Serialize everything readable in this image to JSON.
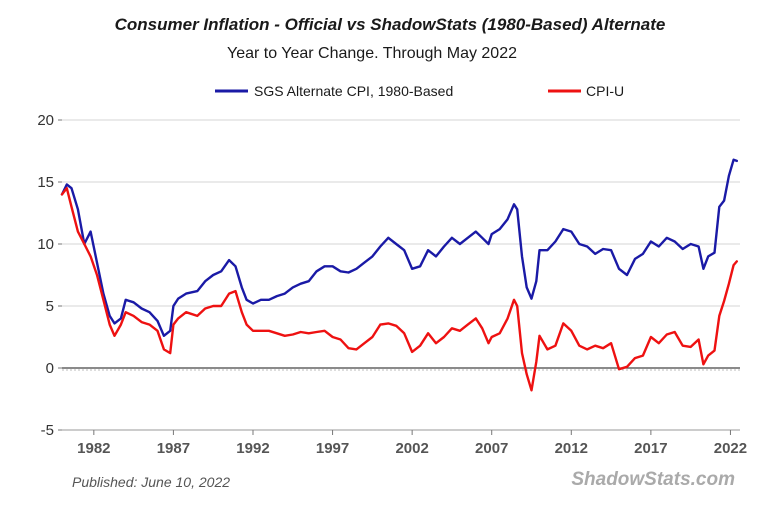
{
  "chart_data": {
    "type": "line",
    "title": "Consumer Inflation - Official vs ShadowStats (1980-Based) Alternate",
    "subtitle": "Year to Year Change. Through May 2022",
    "xlabel": "",
    "ylabel": "",
    "ylim": [
      -5,
      20
    ],
    "xlim": [
      1980,
      2022.6
    ],
    "yticks": [
      "-5",
      "0",
      "5",
      "10",
      "15",
      "20"
    ],
    "xticks": [
      "1982",
      "1987",
      "1992",
      "1997",
      "2002",
      "2007",
      "2012",
      "2017",
      "2022"
    ],
    "grid": true,
    "legend_position": "top-right",
    "series": [
      {
        "name": "SGS Alternate CPI, 1980-Based",
        "color": "#1a1aa6",
        "x": [
          1980.0,
          1980.3,
          1980.6,
          1981.0,
          1981.4,
          1981.8,
          1982.2,
          1982.6,
          1983.0,
          1983.3,
          1983.7,
          1984.0,
          1984.5,
          1985.0,
          1985.5,
          1986.0,
          1986.4,
          1986.8,
          1987.0,
          1987.3,
          1987.8,
          1988.5,
          1989.0,
          1989.5,
          1990.0,
          1990.5,
          1990.9,
          1991.3,
          1991.6,
          1992.0,
          1992.5,
          1993.0,
          1993.5,
          1994.0,
          1994.5,
          1995.0,
          1995.5,
          1996.0,
          1996.5,
          1997.0,
          1997.5,
          1998.0,
          1998.5,
          1999.0,
          1999.5,
          2000.0,
          2000.5,
          2001.0,
          2001.5,
          2002.0,
          2002.5,
          2003.0,
          2003.5,
          2004.0,
          2004.5,
          2005.0,
          2005.5,
          2006.0,
          2006.4,
          2006.8,
          2007.0,
          2007.5,
          2008.0,
          2008.4,
          2008.6,
          2008.9,
          2009.2,
          2009.5,
          2009.8,
          2010.0,
          2010.5,
          2011.0,
          2011.5,
          2012.0,
          2012.5,
          2013.0,
          2013.5,
          2014.0,
          2014.5,
          2015.0,
          2015.5,
          2016.0,
          2016.5,
          2017.0,
          2017.5,
          2018.0,
          2018.5,
          2019.0,
          2019.5,
          2020.0,
          2020.3,
          2020.6,
          2021.0,
          2021.3,
          2021.6,
          2021.9,
          2022.2,
          2022.4
        ],
        "values": [
          14.0,
          14.8,
          14.5,
          12.8,
          10.0,
          11.0,
          8.5,
          6.0,
          4.2,
          3.6,
          4.0,
          5.5,
          5.3,
          4.8,
          4.5,
          3.8,
          2.6,
          3.0,
          5.0,
          5.6,
          6.0,
          6.2,
          7.0,
          7.5,
          7.8,
          8.7,
          8.2,
          6.5,
          5.5,
          5.2,
          5.5,
          5.5,
          5.8,
          6.0,
          6.5,
          6.8,
          7.0,
          7.8,
          8.2,
          8.2,
          7.8,
          7.7,
          8.0,
          8.5,
          9.0,
          9.8,
          10.5,
          10.0,
          9.5,
          8.0,
          8.2,
          9.5,
          9.0,
          9.8,
          10.5,
          10.0,
          10.5,
          11.0,
          10.5,
          10.0,
          10.8,
          11.2,
          12.0,
          13.2,
          12.8,
          9.0,
          6.5,
          5.6,
          7.0,
          9.5,
          9.5,
          10.2,
          11.2,
          11.0,
          10.0,
          9.8,
          9.2,
          9.6,
          9.5,
          8.0,
          7.5,
          8.8,
          9.2,
          10.2,
          9.8,
          10.5,
          10.2,
          9.6,
          10.0,
          9.8,
          8.0,
          9.0,
          9.3,
          13.0,
          13.5,
          15.5,
          16.8,
          16.7
        ]
      },
      {
        "name": "CPI-U",
        "color": "#ee1111",
        "x": [
          1980.0,
          1980.3,
          1980.6,
          1981.0,
          1981.4,
          1981.8,
          1982.2,
          1982.6,
          1983.0,
          1983.3,
          1983.7,
          1984.0,
          1984.5,
          1985.0,
          1985.5,
          1986.0,
          1986.4,
          1986.8,
          1987.0,
          1987.3,
          1987.8,
          1988.5,
          1989.0,
          1989.5,
          1990.0,
          1990.5,
          1990.9,
          1991.3,
          1991.6,
          1992.0,
          1992.5,
          1993.0,
          1993.5,
          1994.0,
          1994.5,
          1995.0,
          1995.5,
          1996.0,
          1996.5,
          1997.0,
          1997.5,
          1998.0,
          1998.5,
          1999.0,
          1999.5,
          2000.0,
          2000.5,
          2001.0,
          2001.5,
          2002.0,
          2002.5,
          2003.0,
          2003.5,
          2004.0,
          2004.5,
          2005.0,
          2005.5,
          2006.0,
          2006.4,
          2006.8,
          2007.0,
          2007.5,
          2008.0,
          2008.4,
          2008.6,
          2008.9,
          2009.2,
          2009.5,
          2009.8,
          2010.0,
          2010.5,
          2011.0,
          2011.5,
          2012.0,
          2012.5,
          2013.0,
          2013.5,
          2014.0,
          2014.5,
          2015.0,
          2015.5,
          2016.0,
          2016.5,
          2017.0,
          2017.5,
          2018.0,
          2018.5,
          2019.0,
          2019.5,
          2020.0,
          2020.3,
          2020.6,
          2021.0,
          2021.3,
          2021.6,
          2021.9,
          2022.2,
          2022.4
        ],
        "values": [
          14.0,
          14.5,
          13.0,
          11.0,
          10.0,
          9.0,
          7.5,
          5.5,
          3.5,
          2.6,
          3.5,
          4.5,
          4.2,
          3.7,
          3.5,
          3.0,
          1.5,
          1.2,
          3.5,
          4.0,
          4.5,
          4.2,
          4.8,
          5.0,
          5.0,
          6.0,
          6.2,
          4.5,
          3.5,
          3.0,
          3.0,
          3.0,
          2.8,
          2.6,
          2.7,
          2.9,
          2.8,
          2.9,
          3.0,
          2.5,
          2.3,
          1.6,
          1.5,
          2.0,
          2.5,
          3.5,
          3.6,
          3.4,
          2.8,
          1.3,
          1.8,
          2.8,
          2.0,
          2.5,
          3.2,
          3.0,
          3.5,
          4.0,
          3.2,
          2.0,
          2.5,
          2.8,
          4.0,
          5.5,
          5.0,
          1.2,
          -0.5,
          -1.8,
          0.5,
          2.6,
          1.5,
          1.8,
          3.6,
          3.0,
          1.8,
          1.5,
          1.8,
          1.6,
          2.0,
          -0.1,
          0.1,
          0.8,
          1.0,
          2.5,
          2.0,
          2.7,
          2.9,
          1.8,
          1.7,
          2.3,
          0.3,
          1.0,
          1.4,
          4.2,
          5.4,
          6.8,
          8.3,
          8.6
        ]
      }
    ],
    "footer_left": "Published: June 10, 2022",
    "footer_right": "ShadowStats.com"
  }
}
